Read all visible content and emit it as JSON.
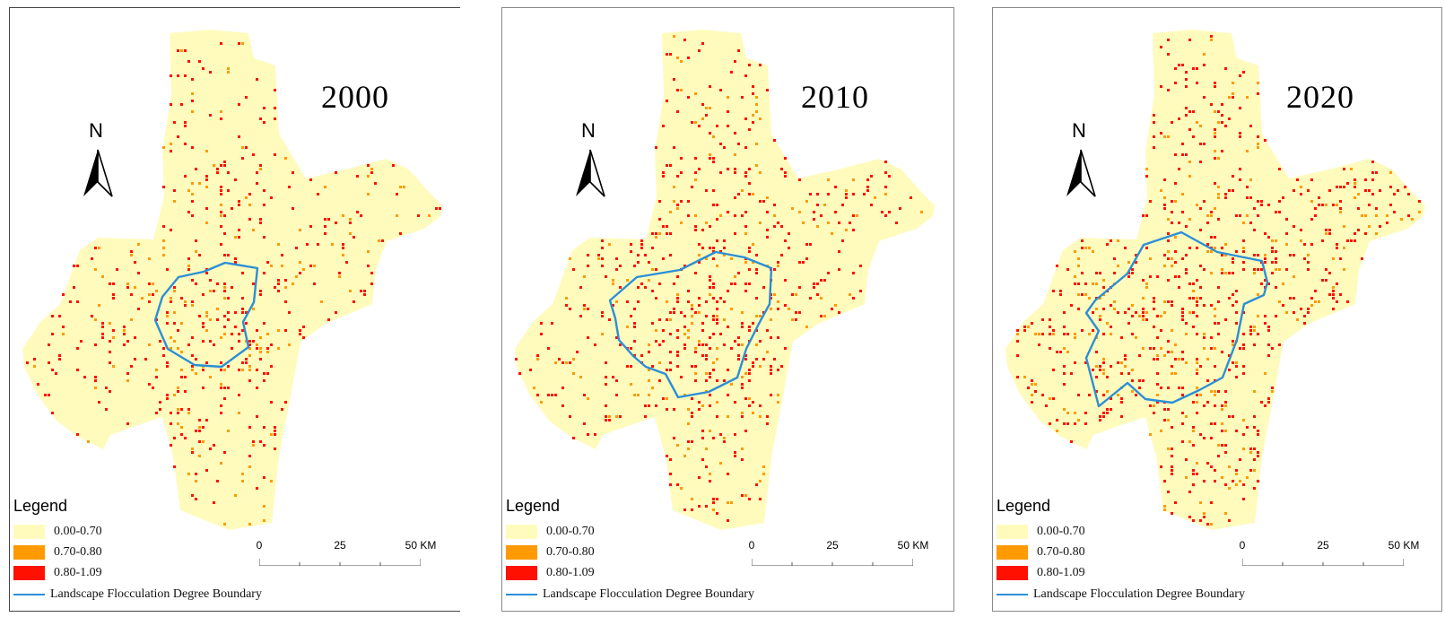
{
  "panels": [
    {
      "year": "2000",
      "boundary": "small"
    },
    {
      "year": "2010",
      "boundary": "medium"
    },
    {
      "year": "2020",
      "boundary": "large"
    }
  ],
  "north_label": "N",
  "legend": {
    "title": "Legend",
    "classes": [
      {
        "label": "0.00-0.70",
        "color": "#fffbbd"
      },
      {
        "label": "0.70-0.80",
        "color": "#ff9a00"
      },
      {
        "label": "0.80-1.09",
        "color": "#ff1000"
      }
    ],
    "boundary_label": "Landscape Flocculation Degree Boundary",
    "boundary_color": "#2b8fd6"
  },
  "scale_bar": {
    "ticks": [
      "0",
      "25",
      "50 KM"
    ]
  }
}
